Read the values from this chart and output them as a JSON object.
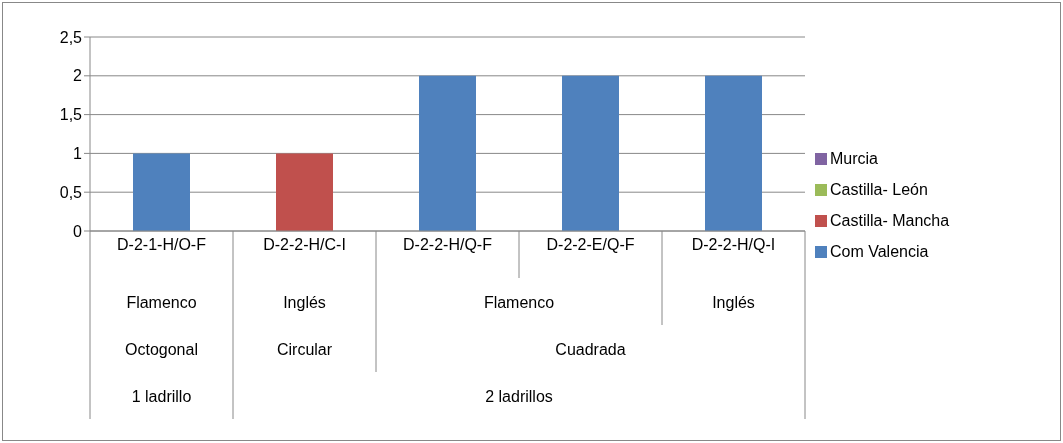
{
  "chart_data": {
    "type": "bar",
    "stacked": true,
    "categories": [
      "D-2-1-H/O-F",
      "D-2-2-H/C-I",
      "D-2-2-H/Q-F",
      "D-2-2-E/Q-F",
      "D-2-2-H/Q-I"
    ],
    "series": [
      {
        "name": "Com Valencia",
        "color": "#4f81bd",
        "values": [
          1,
          null,
          2,
          2,
          2
        ]
      },
      {
        "name": "Castilla- Mancha",
        "color": "#c0504d",
        "values": [
          null,
          1,
          null,
          null,
          null
        ]
      },
      {
        "name": "Castilla- León",
        "color": "#9bbb59",
        "values": [
          null,
          null,
          null,
          null,
          null
        ]
      },
      {
        "name": "Murcia",
        "color": "#8064a2",
        "values": [
          null,
          null,
          null,
          null,
          null
        ]
      }
    ],
    "ylim": [
      0,
      2.5
    ],
    "yticks": [
      0,
      {
        "value": 0.5,
        "label": "0,5"
      },
      1,
      {
        "value": 1.5,
        "label": "1,5"
      },
      2,
      {
        "value": 2.5,
        "label": "2,5"
      }
    ],
    "grid": "y",
    "legend": "right",
    "annotations": [
      "Flamenco",
      "Inglés",
      "Flamenco",
      "Inglés",
      "Octogonal",
      "Circular",
      "Cuadrada",
      "1 ladrillo",
      "2 ladrillos"
    ]
  }
}
